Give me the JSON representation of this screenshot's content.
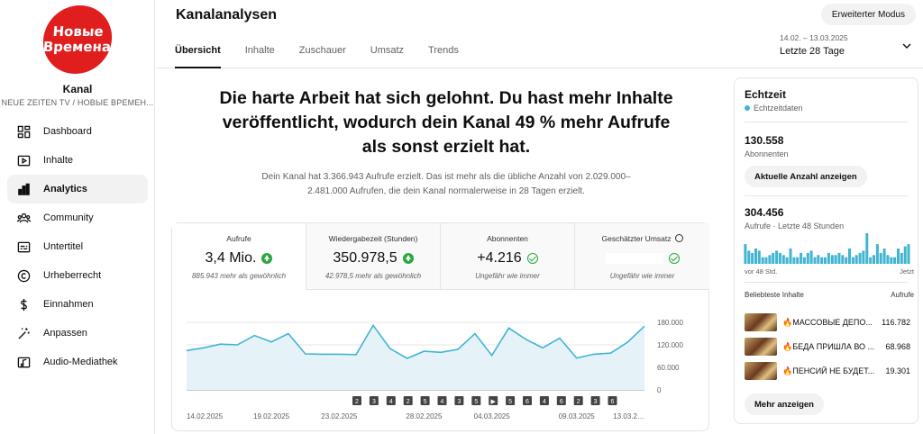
{
  "channel": {
    "logo_line1": "Новые",
    "logo_line2": "Времена",
    "label": "Kanal",
    "name": "NEUE ZEITEN TV / НОВЫЕ ВРЕМЕН..."
  },
  "sidebar": {
    "items": [
      {
        "label": "Dashboard",
        "icon": "dashboard-icon"
      },
      {
        "label": "Inhalte",
        "icon": "content-icon"
      },
      {
        "label": "Analytics",
        "icon": "analytics-icon",
        "active": true
      },
      {
        "label": "Community",
        "icon": "community-icon"
      },
      {
        "label": "Untertitel",
        "icon": "subtitles-icon"
      },
      {
        "label": "Urheberrecht",
        "icon": "copyright-icon"
      },
      {
        "label": "Einnahmen",
        "icon": "dollar-icon"
      },
      {
        "label": "Anpassen",
        "icon": "magic-wand-icon"
      },
      {
        "label": "Audio-Mediathek",
        "icon": "audio-library-icon"
      }
    ]
  },
  "header": {
    "title": "Kanalanalysen",
    "advanced_mode": "Erweiterter Modus",
    "tabs": [
      "Übersicht",
      "Inhalte",
      "Zuschauer",
      "Umsatz",
      "Trends"
    ],
    "active_tab": 0,
    "range_dates": "14.02. – 13.03.2025",
    "range_label": "Letzte 28 Tage"
  },
  "main": {
    "headline": "Die harte Arbeit hat sich gelohnt. Du hast mehr Inhalte veröffentlicht, wodurch dein Kanal 49 % mehr Aufrufe als sonst erzielt hat.",
    "subtext": "Dein Kanal hat 3.366.943 Aufrufe erzielt. Das ist mehr als die übliche Anzahl von 2.029.000–2.481.000 Aufrufen, die dein Kanal normalerweise in 28 Tagen erzielt.",
    "metrics": [
      {
        "label": "Aufrufe",
        "value": "3,4 Mio.",
        "note": "885.943 mehr als gewöhnlich",
        "indicator": "up"
      },
      {
        "label": "Wiedergabezeit (Stunden)",
        "value": "350.978,5",
        "note": "42.978,5 mehr als gewöhnlich",
        "indicator": "up"
      },
      {
        "label": "Abonnenten",
        "value": "+4.216",
        "note": "Ungefähr wie immer",
        "indicator": "check"
      },
      {
        "label": "Geschätzter Umsatz",
        "value": "",
        "note": "Ungefähr wie immer",
        "indicator": "check"
      }
    ]
  },
  "chart_data": {
    "type": "area",
    "x": [
      "14.02.2025",
      "15.02.",
      "16.02.",
      "17.02.",
      "18.02.",
      "19.02.2025",
      "20.02.",
      "21.02.",
      "22.02.",
      "23.02.2025",
      "24.02.",
      "25.02.",
      "26.02.",
      "27.02.",
      "28.02.2025",
      "01.03.",
      "02.03.",
      "03.03.",
      "04.03.2025",
      "05.03.",
      "06.03.",
      "07.03.",
      "08.03.",
      "09.03.2025",
      "10.03.",
      "11.03.",
      "12.03.",
      "13.03.2025"
    ],
    "x_tick_labels": [
      "14.02.2025",
      "19.02.2025",
      "23.02.2025",
      "28.02.2025",
      "04.03.2025",
      "09.03.2025",
      "13.03.2…"
    ],
    "series": [
      {
        "values": [
          105000,
          112000,
          122000,
          120000,
          145000,
          128000,
          150000,
          96000,
          95000,
          95000,
          94000,
          172000,
          110000,
          84000,
          103000,
          100000,
          108000,
          150000,
          92000,
          165000,
          135000,
          112000,
          138000,
          85000,
          95000,
          98000,
          127000,
          170000
        ]
      }
    ],
    "y_ticks": [
      "180.000",
      "120.000",
      "60.000",
      "0"
    ],
    "ylim": [
      0,
      180000
    ],
    "upload_markers": [
      "2",
      "3",
      "4",
      "2",
      "5",
      "4",
      "3",
      "5",
      "▶",
      "5",
      "6",
      "4",
      "6",
      "2",
      "3",
      "6"
    ],
    "color": "#41b4d2"
  },
  "realtime": {
    "title": "Echtzeit",
    "live_label": "Echtzeitdaten",
    "subscribers": "130.558",
    "subscribers_label": "Abonnenten",
    "show_exact_button": "Aktuelle Anzahl anzeigen",
    "views": "304.456",
    "views_label": "Aufrufe · Letzte 48 Stunden",
    "bars_start": "vor 48 Std.",
    "bars_end": "Jetzt",
    "hourly_views": [
      9,
      6,
      5,
      7,
      6,
      3,
      3,
      4,
      5,
      6,
      5,
      4,
      3,
      7,
      3,
      3,
      5,
      3,
      5,
      6,
      3,
      4,
      3,
      3,
      5,
      4,
      4,
      5,
      4,
      3,
      7,
      3,
      4,
      5,
      6,
      14,
      3,
      4,
      9,
      5,
      7,
      4,
      3,
      3,
      7,
      5,
      8,
      9
    ],
    "top_header_left": "Beliebteste Inhalte",
    "top_header_right": "Aufrufe",
    "top_content": [
      {
        "title": "МАССОВЫЕ ДЕПО...",
        "views": "116.782"
      },
      {
        "title": "БЕДА ПРИШЛА ВО ...",
        "views": "68.968"
      },
      {
        "title": "ПЕНСИЙ НЕ БУДЕТ...",
        "views": "19.301"
      }
    ],
    "more_button": "Mehr anzeigen"
  }
}
